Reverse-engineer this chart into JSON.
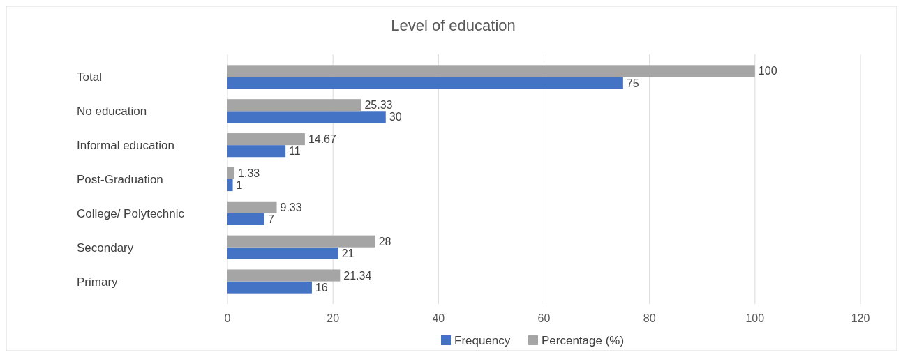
{
  "chart_data": {
    "type": "bar",
    "orientation": "horizontal",
    "title": "Level of education",
    "categories": [
      "Total",
      "No education",
      "Informal education",
      "Post-Graduation",
      "College/ Polytechnic",
      "Secondary",
      "Primary"
    ],
    "series": [
      {
        "name": "Frequency",
        "color": "#4472c4",
        "values": [
          75,
          30,
          11,
          1,
          7,
          21,
          16
        ]
      },
      {
        "name": "Percentage (%)",
        "color": "#a5a5a5",
        "values": [
          100,
          25.33,
          14.67,
          1.33,
          9.33,
          28,
          21.34
        ]
      }
    ],
    "xlim": [
      0,
      120
    ],
    "xticks": [
      0,
      20,
      40,
      60,
      80,
      100,
      120
    ],
    "grid": "x",
    "legend": "bottom",
    "data_labels": true
  }
}
